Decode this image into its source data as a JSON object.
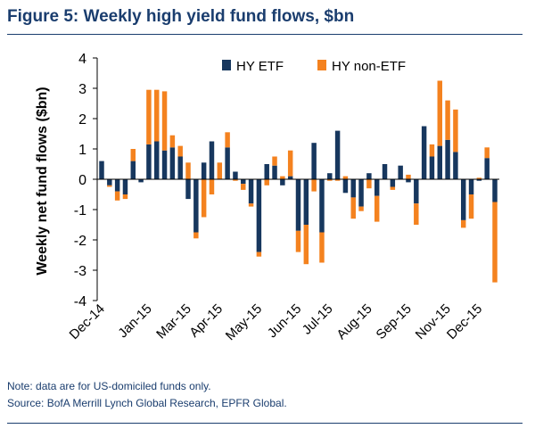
{
  "figure": {
    "title": "Figure 5: Weekly high yield fund flows, $bn",
    "note": "Note: data are for US-domiciled funds only.",
    "source": "Source: BofA Merrill Lynch Global Research, EPFR Global."
  },
  "chart_data": {
    "type": "bar",
    "stacked": true,
    "ylabel": "Weekly net fund flows ($bn)",
    "xlabel": "",
    "ylim": [
      -4,
      4
    ],
    "yticks": [
      4,
      3,
      2,
      1,
      0,
      -1,
      -2,
      -3,
      -4
    ],
    "x_tick_labels": [
      "Dec-14",
      "Jan-15",
      "Mar-15",
      "Apr-15",
      "May-15",
      "Jun-15",
      "Jul-15",
      "Aug-15",
      "Sep-15",
      "Nov-15",
      "Dec-15"
    ],
    "x_tick_positions": [
      0,
      6,
      11,
      15,
      20,
      25,
      29,
      34,
      39,
      44,
      48
    ],
    "legend_position": "top-right",
    "grid": false,
    "series": [
      {
        "name": "HY ETF",
        "color": "#17375e",
        "values": [
          0.6,
          -0.2,
          -0.4,
          -0.5,
          0.6,
          -0.1,
          1.15,
          1.25,
          0.95,
          1.05,
          0.75,
          -0.65,
          -1.75,
          0.55,
          1.25,
          0.0,
          1.05,
          0.25,
          -0.15,
          -0.8,
          -2.4,
          0.5,
          0.45,
          -0.2,
          0.1,
          -1.7,
          -1.5,
          1.2,
          -1.75,
          0.2,
          1.6,
          -0.45,
          -0.6,
          -0.9,
          0.2,
          -0.55,
          0.5,
          -0.25,
          0.45,
          -0.1,
          -0.8,
          1.75,
          0.75,
          1.1,
          1.3,
          0.9,
          -1.35,
          -0.5,
          -0.05,
          0.7,
          -0.75
        ]
      },
      {
        "name": "HY non-ETF",
        "color": "#f4821f",
        "values": [
          0.0,
          -0.05,
          -0.3,
          -0.15,
          0.4,
          0.0,
          1.8,
          1.7,
          1.95,
          0.4,
          0.35,
          0.55,
          -0.2,
          -1.25,
          -0.5,
          0.55,
          0.5,
          -0.05,
          -0.2,
          -0.1,
          -0.15,
          -0.2,
          0.3,
          0.1,
          0.85,
          -0.7,
          -1.3,
          -0.4,
          -1.0,
          -0.05,
          -0.05,
          0.1,
          -0.7,
          -0.15,
          -0.3,
          -0.85,
          0.0,
          -0.1,
          0.0,
          0.15,
          -0.7,
          0.0,
          0.4,
          2.15,
          1.3,
          1.4,
          -0.25,
          -0.8,
          0.05,
          0.35,
          -2.65
        ]
      }
    ]
  }
}
